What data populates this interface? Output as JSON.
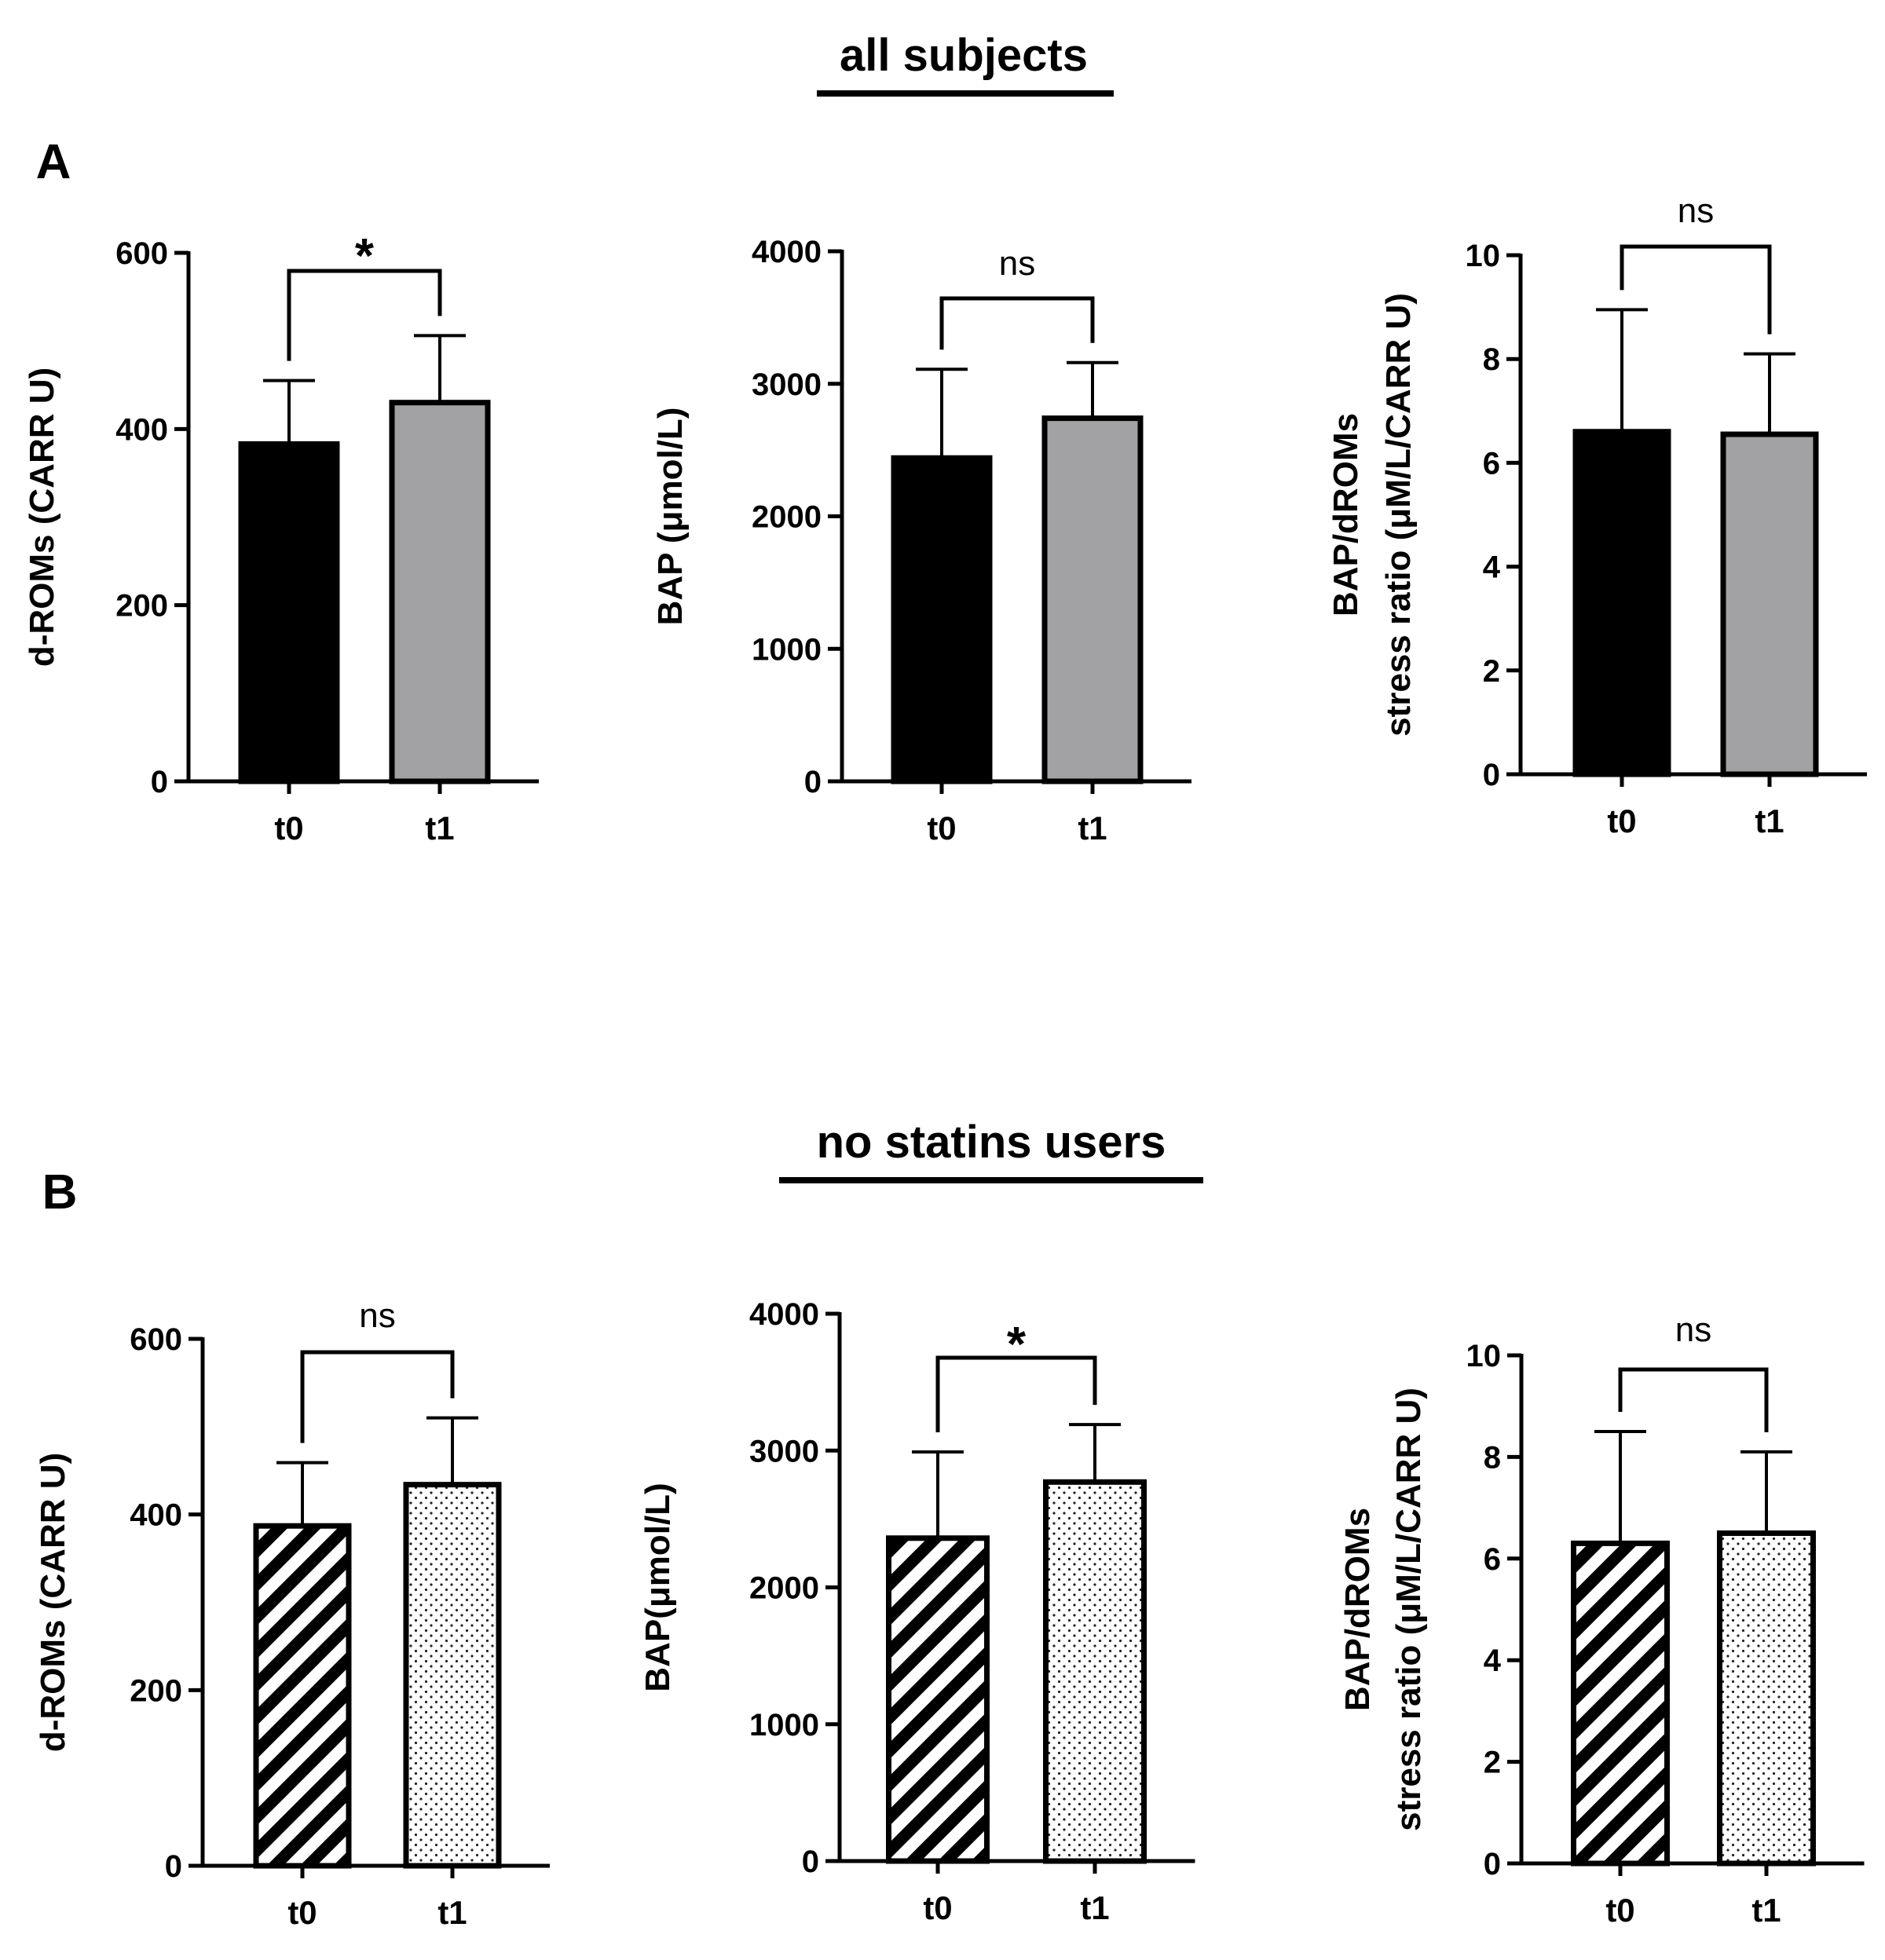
{
  "sections": [
    {
      "title": "all subjects",
      "letter": "A"
    },
    {
      "title": "no statins users",
      "letter": "B"
    }
  ],
  "chart_data": [
    {
      "type": "bar",
      "panel": "A",
      "position": "left",
      "categories": [
        "t0",
        "t1"
      ],
      "values": [
        383,
        430
      ],
      "errors": [
        72,
        76
      ],
      "fills": [
        "solid-black",
        "solid-gray"
      ],
      "ylabel": "d-ROMs (CARR U)",
      "ylim": [
        0,
        600
      ],
      "yticks": [
        "0",
        "200",
        "400",
        "600"
      ],
      "significance": "*"
    },
    {
      "type": "bar",
      "panel": "A",
      "position": "center",
      "categories": [
        "t0",
        "t1"
      ],
      "values": [
        2440,
        2740
      ],
      "errors": [
        670,
        420
      ],
      "fills": [
        "solid-black",
        "solid-gray"
      ],
      "ylabel": "BAP (μmol/L)",
      "ylim": [
        0,
        4000
      ],
      "yticks": [
        "0",
        "1000",
        "2000",
        "3000",
        "4000"
      ],
      "significance": "ns"
    },
    {
      "type": "bar",
      "panel": "A",
      "position": "right",
      "categories": [
        "t0",
        "t1"
      ],
      "values": [
        6.6,
        6.55
      ],
      "errors": [
        2.35,
        1.55
      ],
      "fills": [
        "solid-black",
        "solid-gray"
      ],
      "ylabel": [
        "BAP/dROMs",
        "stress ratio (μM/L/CARR U)"
      ],
      "ylim": [
        0,
        10
      ],
      "yticks": [
        "0",
        "2",
        "4",
        "6",
        "8",
        "10"
      ],
      "significance": "ns"
    },
    {
      "type": "bar",
      "panel": "B",
      "position": "left",
      "categories": [
        "t0",
        "t1"
      ],
      "values": [
        387,
        434
      ],
      "errors": [
        72,
        76
      ],
      "fills": [
        "diagonal-stripes",
        "dots"
      ],
      "ylabel": "d-ROMs (CARR U)",
      "ylim": [
        0,
        600
      ],
      "yticks": [
        "0",
        "200",
        "400",
        "600"
      ],
      "significance": "ns"
    },
    {
      "type": "bar",
      "panel": "B",
      "position": "center",
      "categories": [
        "t0",
        "t1"
      ],
      "values": [
        2360,
        2770
      ],
      "errors": [
        630,
        420
      ],
      "fills": [
        "diagonal-stripes",
        "dots"
      ],
      "ylabel": "BAP(μmol/L)",
      "ylim": [
        0,
        4000
      ],
      "yticks": [
        "0",
        "1000",
        "2000",
        "3000",
        "4000"
      ],
      "significance": "*"
    },
    {
      "type": "bar",
      "panel": "B",
      "position": "right",
      "categories": [
        "t0",
        "t1"
      ],
      "values": [
        6.3,
        6.5
      ],
      "errors": [
        2.2,
        1.6
      ],
      "fills": [
        "diagonal-stripes",
        "dots"
      ],
      "ylabel": [
        "BAP/dROMs",
        "stress ratio (μM/L/CARR U)"
      ],
      "ylim": [
        0,
        10
      ],
      "yticks": [
        "0",
        "2",
        "4",
        "6",
        "8",
        "10"
      ],
      "significance": "ns"
    }
  ]
}
